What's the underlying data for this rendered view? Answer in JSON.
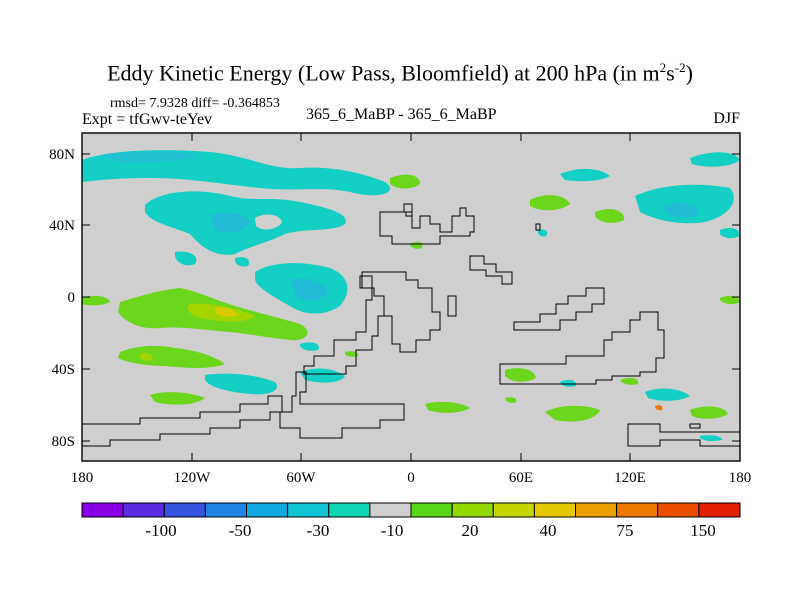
{
  "title": {
    "prefix": "Eddy Kinetic Energy (Low Pass, Bloomfield) at 200 hPa (in m",
    "sup1": "2",
    "mid": "s",
    "sup2": "-2",
    "suffix": ")"
  },
  "stats": "rmsd= 7.9328 diff= -0.364853",
  "expt": "Expt = tfGwv-teYev",
  "case_label": "365_6_MaBP - 365_6_MaBP",
  "season": "DJF",
  "y_ticks": [
    "80N",
    "40N",
    "0",
    "40S",
    "80S"
  ],
  "x_ticks": [
    "180",
    "120W",
    "60W",
    "0",
    "60E",
    "120E",
    "180"
  ],
  "colorbar": {
    "labels": [
      "-100",
      "-50",
      "-30",
      "-10",
      "20",
      "40",
      "75",
      "150"
    ],
    "colors": [
      "#8a00e6",
      "#5a2be0",
      "#3555e0",
      "#1f86e8",
      "#10a8e0",
      "#10c4d6",
      "#10d6b4",
      "#cfcfcf",
      "#58d818",
      "#92d800",
      "#c4d600",
      "#e4c800",
      "#eca000",
      "#ee7800",
      "#ec4e00",
      "#e02000"
    ]
  },
  "chart_data": {
    "type": "heatmap",
    "title": "Eddy Kinetic Energy (Low Pass, Bloomfield) at 200 hPa (in m^2 s^-2)",
    "variable": "Eddy kinetic energy difference",
    "units": "m2 s-2",
    "level": "200 hPa",
    "season": "DJF",
    "rmsd": 7.9328,
    "diff": -0.364853,
    "xlim": [
      -180,
      180
    ],
    "ylim": [
      -90,
      90
    ],
    "contour_levels": [
      -100,
      -50,
      -30,
      -10,
      20,
      40,
      75,
      150
    ]
  }
}
